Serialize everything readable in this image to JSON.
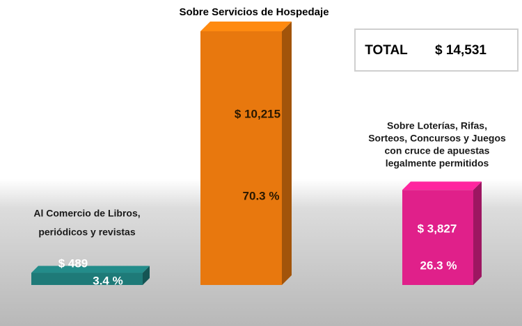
{
  "chart_data": {
    "type": "bar",
    "categories": [
      [
        "Al Comercio de Libros,",
        "periódicos y revistas"
      ],
      [
        "Sobre Servicios de Hospedaje"
      ],
      [
        "Sobre Loterías, Rifas,",
        "Sorteos, Concursos y Juegos",
        "con cruce de apuestas",
        "legalmente permitidos"
      ]
    ],
    "values": [
      489,
      10215,
      3827
    ],
    "value_labels": [
      "$ 489",
      "$ 10,215",
      "$ 3,827"
    ],
    "percent": [
      3.4,
      70.3,
      26.3
    ],
    "percent_labels": [
      "3.4 %",
      "70.3 %",
      "26.3 %"
    ],
    "colors": [
      "#1e7a78",
      "#e8780e",
      "#e0208a"
    ],
    "total": {
      "label": "TOTAL",
      "value": 14531,
      "value_label": "$ 14,531"
    }
  }
}
